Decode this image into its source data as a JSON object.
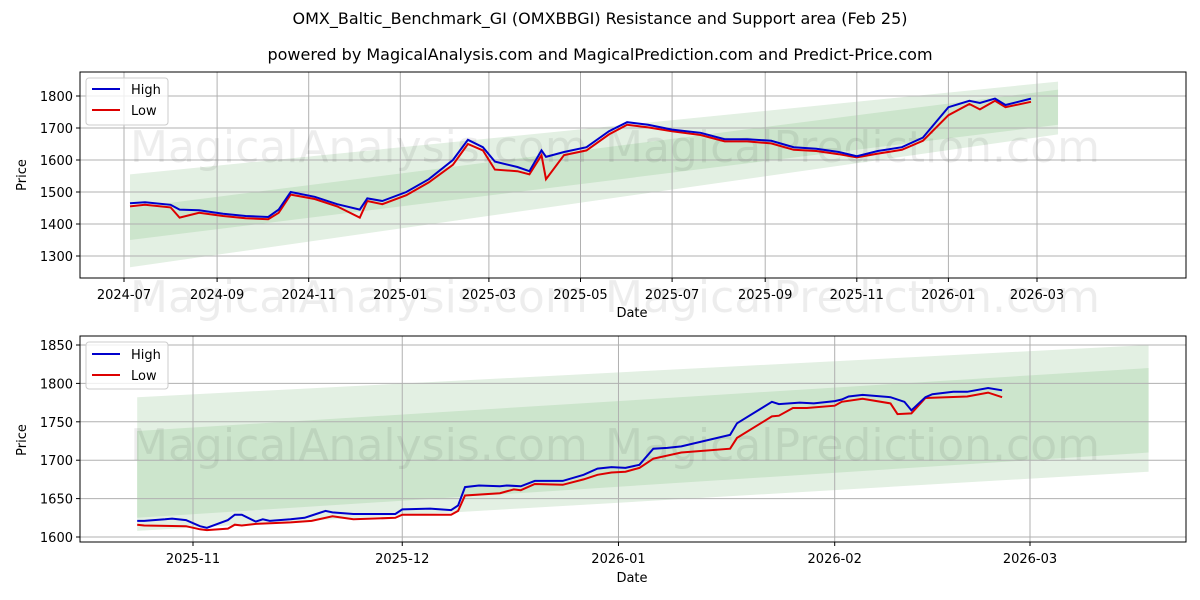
{
  "header": {
    "title": "OMX_Baltic_Benchmark_GI (OMXBBGI) Resistance and Support area (Feb 25)",
    "subtitle": "powered by MagicalAnalysis.com and MagicalPrediction.com and Predict-Price.com"
  },
  "watermarks": [
    "MagicalAnalysis.com",
    "MagicalPrediction.com"
  ],
  "colors": {
    "high": "#0000cc",
    "low": "#dd0000",
    "band_outer": "#e3f0e3",
    "band_inner": "#cce5cc",
    "grid": "#b0b0b0"
  },
  "legend": {
    "high_label": "High",
    "low_label": "Low"
  },
  "chart_data": [
    {
      "type": "line",
      "title": "Full history",
      "xlabel": "Date",
      "ylabel": "Price",
      "ylim": [
        1230,
        1880
      ],
      "yticks": [
        1300,
        1400,
        1500,
        1600,
        1700,
        1800
      ],
      "xticks": [
        "2024-07",
        "2024-09",
        "2024-11",
        "2025-01",
        "2025-03",
        "2025-05",
        "2025-07",
        "2025-09",
        "2025-11",
        "2026-01",
        "2026-03"
      ],
      "grid": true,
      "legend_position": "upper left",
      "x": [
        "2024-07-05",
        "2024-07-15",
        "2024-08-01",
        "2024-08-07",
        "2024-08-20",
        "2024-09-05",
        "2024-09-20",
        "2024-10-05",
        "2024-10-12",
        "2024-10-20",
        "2024-11-05",
        "2024-11-20",
        "2024-12-05",
        "2024-12-10",
        "2024-12-20",
        "2025-01-05",
        "2025-01-20",
        "2025-02-05",
        "2025-02-15",
        "2025-02-25",
        "2025-03-05",
        "2025-03-20",
        "2025-03-28",
        "2025-04-05",
        "2025-04-08",
        "2025-04-20",
        "2025-05-05",
        "2025-05-20",
        "2025-06-01",
        "2025-06-15",
        "2025-07-01",
        "2025-07-20",
        "2025-08-05",
        "2025-08-20",
        "2025-09-05",
        "2025-09-20",
        "2025-10-05",
        "2025-10-20",
        "2025-11-01",
        "2025-11-15",
        "2025-12-01",
        "2025-12-15",
        "2026-01-01",
        "2026-01-15",
        "2026-01-22",
        "2026-02-01",
        "2026-02-08",
        "2026-02-25"
      ],
      "series": [
        {
          "name": "High",
          "values": [
            1465,
            1468,
            1460,
            1445,
            1443,
            1432,
            1425,
            1422,
            1445,
            1500,
            1485,
            1462,
            1445,
            1480,
            1472,
            1500,
            1540,
            1600,
            1663,
            1640,
            1595,
            1578,
            1565,
            1630,
            1610,
            1625,
            1640,
            1690,
            1718,
            1710,
            1695,
            1685,
            1665,
            1665,
            1660,
            1640,
            1635,
            1625,
            1612,
            1628,
            1640,
            1670,
            1765,
            1785,
            1778,
            1792,
            1772,
            1792
          ]
        },
        {
          "name": "Low",
          "values": [
            1455,
            1460,
            1452,
            1420,
            1435,
            1425,
            1418,
            1415,
            1435,
            1492,
            1478,
            1455,
            1420,
            1472,
            1462,
            1490,
            1530,
            1585,
            1650,
            1630,
            1570,
            1565,
            1555,
            1615,
            1540,
            1615,
            1630,
            1680,
            1710,
            1702,
            1690,
            1678,
            1658,
            1658,
            1652,
            1632,
            1628,
            1618,
            1608,
            1620,
            1632,
            1660,
            1740,
            1775,
            1758,
            1785,
            1765,
            1782
          ]
        }
      ],
      "bands": {
        "outer": {
          "start": [
            1265,
            1555
          ],
          "end": [
            1680,
            1845
          ]
        },
        "inner": {
          "start": [
            1350,
            1450
          ],
          "end": [
            1710,
            1820
          ]
        },
        "x_range": [
          "2024-07-05",
          "2026-03-15"
        ]
      }
    },
    {
      "type": "line",
      "title": "Recent detail",
      "xlabel": "Date",
      "ylabel": "Price",
      "ylim": [
        1593,
        1863
      ],
      "yticks": [
        1600,
        1650,
        1700,
        1750,
        1800,
        1850
      ],
      "xticks": [
        "2025-11",
        "2025-12",
        "2026-01",
        "2026-02",
        "2026-03"
      ],
      "grid": true,
      "legend_position": "upper left",
      "series": [
        {
          "name": "High",
          "points": [
            [
              "2025-10-24",
              1621
            ],
            [
              "2025-10-25",
              1621
            ],
            [
              "2025-10-28",
              1623
            ],
            [
              "2025-10-29",
              1624
            ],
            [
              "2025-10-31",
              1622
            ],
            [
              "2025-11-02",
              1614
            ],
            [
              "2025-11-03",
              1612
            ],
            [
              "2025-11-06",
              1622
            ],
            [
              "2025-11-07",
              1629
            ],
            [
              "2025-11-08",
              1629
            ],
            [
              "2025-11-10",
              1620
            ],
            [
              "2025-11-11",
              1623
            ],
            [
              "2025-11-12",
              1621
            ],
            [
              "2025-11-15",
              1623
            ],
            [
              "2025-11-17",
              1625
            ],
            [
              "2025-11-18",
              1628
            ],
            [
              "2025-11-20",
              1634
            ],
            [
              "2025-11-21",
              1632
            ],
            [
              "2025-11-24",
              1630
            ],
            [
              "2025-11-30",
              1630
            ],
            [
              "2025-12-01",
              1636
            ],
            [
              "2025-12-05",
              1637
            ],
            [
              "2025-12-08",
              1635
            ],
            [
              "2025-12-09",
              1641
            ],
            [
              "2025-12-10",
              1665
            ],
            [
              "2025-12-12",
              1667
            ],
            [
              "2025-12-15",
              1666
            ],
            [
              "2025-12-16",
              1667
            ],
            [
              "2025-12-18",
              1666
            ],
            [
              "2025-12-20",
              1673
            ],
            [
              "2025-12-24",
              1673
            ],
            [
              "2025-12-27",
              1681
            ],
            [
              "2025-12-29",
              1689
            ],
            [
              "2025-12-31",
              1691
            ],
            [
              "2026-01-02",
              1690
            ],
            [
              "2026-01-04",
              1694
            ],
            [
              "2026-01-06",
              1715
            ],
            [
              "2026-01-08",
              1716
            ],
            [
              "2026-01-10",
              1718
            ],
            [
              "2026-01-17",
              1733
            ],
            [
              "2026-01-18",
              1748
            ],
            [
              "2026-01-23",
              1776
            ],
            [
              "2026-01-24",
              1773
            ],
            [
              "2026-01-27",
              1775
            ],
            [
              "2026-01-29",
              1774
            ],
            [
              "2026-02-01",
              1777
            ],
            [
              "2026-02-02",
              1779
            ],
            [
              "2026-02-03",
              1783
            ],
            [
              "2026-02-05",
              1785
            ],
            [
              "2026-02-09",
              1782
            ],
            [
              "2026-02-11",
              1776
            ],
            [
              "2026-02-12",
              1765
            ],
            [
              "2026-02-14",
              1782
            ],
            [
              "2026-02-15",
              1786
            ],
            [
              "2026-02-18",
              1789
            ],
            [
              "2026-02-20",
              1789
            ],
            [
              "2026-02-23",
              1794
            ],
            [
              "2026-02-25",
              1791
            ]
          ]
        },
        {
          "name": "Low",
          "points": [
            [
              "2025-10-24",
              1616
            ],
            [
              "2025-10-25",
              1615
            ],
            [
              "2025-10-31",
              1614
            ],
            [
              "2025-11-02",
              1610
            ],
            [
              "2025-11-03",
              1609
            ],
            [
              "2025-11-06",
              1611
            ],
            [
              "2025-11-07",
              1616
            ],
            [
              "2025-11-08",
              1615
            ],
            [
              "2025-11-10",
              1617
            ],
            [
              "2025-11-15",
              1619
            ],
            [
              "2025-11-18",
              1621
            ],
            [
              "2025-11-21",
              1627
            ],
            [
              "2025-11-24",
              1623
            ],
            [
              "2025-11-30",
              1625
            ],
            [
              "2025-12-01",
              1629
            ],
            [
              "2025-12-08",
              1629
            ],
            [
              "2025-12-09",
              1634
            ],
            [
              "2025-12-10",
              1654
            ],
            [
              "2025-12-15",
              1657
            ],
            [
              "2025-12-17",
              1662
            ],
            [
              "2025-12-18",
              1661
            ],
            [
              "2025-12-20",
              1669
            ],
            [
              "2025-12-24",
              1668
            ],
            [
              "2025-12-27",
              1675
            ],
            [
              "2025-12-29",
              1681
            ],
            [
              "2025-12-31",
              1684
            ],
            [
              "2026-01-02",
              1685
            ],
            [
              "2026-01-04",
              1690
            ],
            [
              "2026-01-06",
              1702
            ],
            [
              "2026-01-10",
              1710
            ],
            [
              "2026-01-17",
              1715
            ],
            [
              "2026-01-18",
              1729
            ],
            [
              "2026-01-23",
              1757
            ],
            [
              "2026-01-24",
              1758
            ],
            [
              "2026-01-26",
              1768
            ],
            [
              "2026-01-28",
              1768
            ],
            [
              "2026-02-01",
              1771
            ],
            [
              "2026-02-02",
              1776
            ],
            [
              "2026-02-05",
              1780
            ],
            [
              "2026-02-09",
              1774
            ],
            [
              "2026-02-10",
              1760
            ],
            [
              "2026-02-12",
              1761
            ],
            [
              "2026-02-14",
              1781
            ],
            [
              "2026-02-20",
              1783
            ],
            [
              "2026-02-23",
              1788
            ],
            [
              "2026-02-25",
              1782
            ]
          ]
        }
      ],
      "bands": {
        "outer": {
          "start": [
            1608,
            1782
          ],
          "end": [
            1685,
            1850
          ]
        },
        "inner": {
          "start": [
            1625,
            1738
          ],
          "end": [
            1710,
            1820
          ]
        },
        "x_range": [
          "2025-10-24",
          "2026-03-18"
        ]
      }
    }
  ]
}
